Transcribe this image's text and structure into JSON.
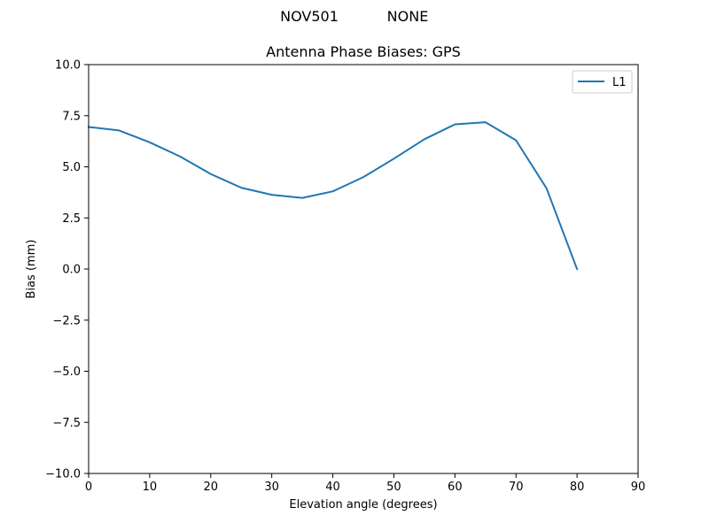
{
  "figure": {
    "suptitle_left": "NOV501",
    "suptitle_right": "NONE"
  },
  "chart_data": {
    "type": "line",
    "title": "Antenna Phase Biases: GPS",
    "xlabel": "Elevation angle (degrees)",
    "ylabel": "Bias (mm)",
    "xlim": [
      0,
      90
    ],
    "ylim": [
      -10,
      10
    ],
    "xticks": [
      0,
      10,
      20,
      30,
      40,
      50,
      60,
      70,
      80,
      90
    ],
    "yticks": [
      10.0,
      7.5,
      5.0,
      2.5,
      0.0,
      -2.5,
      -5.0,
      -7.5,
      -10.0
    ],
    "xtick_labels": [
      "0",
      "10",
      "20",
      "30",
      "40",
      "50",
      "60",
      "70",
      "80",
      "90"
    ],
    "ytick_labels": [
      "10.0",
      "7.5",
      "5.0",
      "2.5",
      "0.0",
      "−2.5",
      "−5.0",
      "−7.5",
      "−10.0"
    ],
    "grid": false,
    "legend_position": "top-right",
    "series": [
      {
        "name": "L1",
        "color": "#1f77b4",
        "x": [
          0,
          5,
          10,
          15,
          20,
          25,
          30,
          35,
          40,
          45,
          50,
          55,
          60,
          65,
          70,
          75,
          80
        ],
        "y": [
          6.95,
          6.78,
          6.2,
          5.5,
          4.65,
          3.98,
          3.63,
          3.48,
          3.8,
          4.5,
          5.4,
          6.35,
          7.08,
          7.18,
          6.3,
          3.95,
          0.0
        ]
      }
    ]
  }
}
